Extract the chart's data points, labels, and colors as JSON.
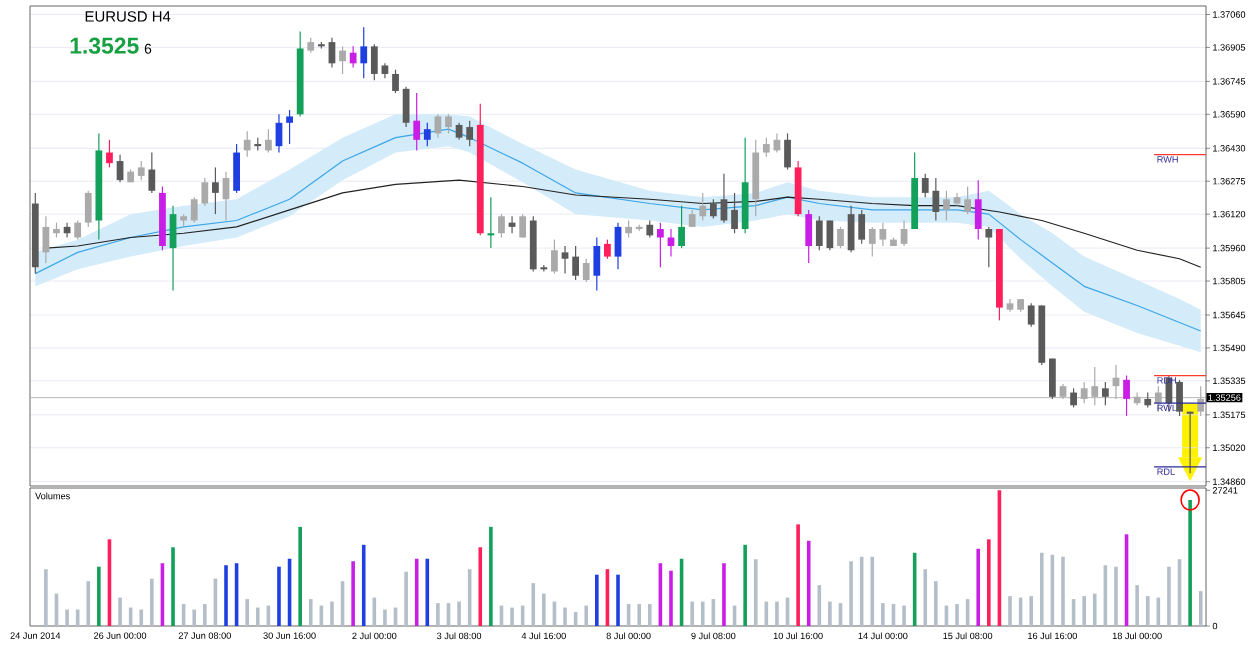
{
  "chart_data": [
    {
      "type": "candlestick",
      "title": "EURUSD H4",
      "subtitle": "1.3525",
      "annotations": [
        "6"
      ],
      "categories": [
        null,
        null,
        null,
        null,
        null,
        null,
        null,
        null,
        null,
        null,
        null,
        null,
        null,
        null,
        null,
        null,
        null,
        null,
        null,
        null,
        null,
        null,
        null,
        null,
        null,
        null,
        null,
        null,
        null,
        null,
        null,
        null,
        null,
        null,
        null,
        null,
        null,
        null,
        null,
        null,
        null,
        null,
        null,
        null,
        null,
        null,
        null,
        null,
        null,
        null,
        null,
        null,
        null,
        null,
        null,
        null,
        null,
        null,
        null,
        null,
        null,
        null,
        null,
        null,
        null,
        null,
        null,
        null,
        null,
        null,
        null,
        null,
        null,
        null,
        null,
        null,
        null,
        null,
        null,
        null,
        null,
        null,
        null,
        null,
        null,
        null,
        null,
        null,
        null,
        null,
        null,
        null,
        null,
        null,
        null,
        null,
        null,
        null,
        null,
        null,
        null,
        null,
        null,
        null,
        null,
        null,
        null,
        null,
        null,
        null,
        null
      ],
      "ohlc": [
        [
          1.3617,
          1.3622,
          1.3584,
          1.3587
        ],
        [
          1.3594,
          1.3611,
          1.3589,
          1.3606
        ],
        [
          1.3603,
          1.3608,
          1.3601,
          1.3605
        ],
        [
          1.3606,
          1.3608,
          1.3601,
          1.3603
        ],
        [
          1.3601,
          1.3609,
          1.36,
          1.3608
        ],
        [
          1.3608,
          1.3623,
          1.3606,
          1.3622
        ],
        [
          1.3609,
          1.365,
          1.36,
          1.3642
        ],
        [
          1.3641,
          1.3647,
          1.3634,
          1.3636
        ],
        [
          1.3637,
          1.364,
          1.3627,
          1.3628
        ],
        [
          1.3627,
          1.3633,
          1.3627,
          1.3632
        ],
        [
          1.363,
          1.3637,
          1.3628,
          1.3634
        ],
        [
          1.3633,
          1.3641,
          1.3622,
          1.3623
        ],
        [
          1.3622,
          1.3625,
          1.3595,
          1.3597
        ],
        [
          1.3596,
          1.3616,
          1.3576,
          1.3612
        ],
        [
          1.3609,
          1.3612,
          1.3606,
          1.3611
        ],
        [
          1.3609,
          1.362,
          1.3608,
          1.3619
        ],
        [
          1.3617,
          1.3629,
          1.3616,
          1.3627
        ],
        [
          1.3627,
          1.3634,
          1.3612,
          1.3622
        ],
        [
          1.3619,
          1.3632,
          1.3609,
          1.3629
        ],
        [
          1.3623,
          1.3645,
          1.3622,
          1.3641
        ],
        [
          1.3642,
          1.3651,
          1.3639,
          1.3647
        ],
        [
          1.3645,
          1.3648,
          1.3642,
          1.3644
        ],
        [
          1.3642,
          1.3652,
          1.3641,
          1.3647
        ],
        [
          1.3644,
          1.3659,
          1.3641,
          1.3655
        ],
        [
          1.3655,
          1.3661,
          1.3645,
          1.3658
        ],
        [
          1.3659,
          1.3698,
          1.3658,
          1.369
        ],
        [
          1.3689,
          1.3695,
          1.3688,
          1.3693
        ],
        [
          1.3692,
          1.3693,
          1.369,
          1.3691
        ],
        [
          1.3693,
          1.3695,
          1.3681,
          1.3683
        ],
        [
          1.3684,
          1.3691,
          1.3678,
          1.3689
        ],
        [
          1.3688,
          1.3691,
          1.3681,
          1.3683
        ],
        [
          1.3683,
          1.37,
          1.3676,
          1.3691
        ],
        [
          1.3691,
          1.3692,
          1.3675,
          1.3678
        ],
        [
          1.3682,
          1.3683,
          1.3676,
          1.3678
        ],
        [
          1.3678,
          1.368,
          1.3669,
          1.367
        ],
        [
          1.3671,
          1.3672,
          1.3653,
          1.3655
        ],
        [
          1.3656,
          1.3669,
          1.3642,
          1.3647
        ],
        [
          1.3647,
          1.3655,
          1.3644,
          1.3652
        ],
        [
          1.365,
          1.3659,
          1.3648,
          1.3658
        ],
        [
          1.3653,
          1.3659,
          1.365,
          1.3658
        ],
        [
          1.3654,
          1.3655,
          1.3647,
          1.3648
        ],
        [
          1.3653,
          1.3656,
          1.3644,
          1.3647
        ],
        [
          1.3654,
          1.3664,
          1.3602,
          1.3603
        ],
        [
          1.3602,
          1.362,
          1.3596,
          1.3603
        ],
        [
          1.3603,
          1.3612,
          1.3601,
          1.3611
        ],
        [
          1.3608,
          1.3611,
          1.3603,
          1.3606
        ],
        [
          1.3601,
          1.3612,
          1.3601,
          1.3611
        ],
        [
          1.3609,
          1.3611,
          1.3585,
          1.3586
        ],
        [
          1.3587,
          1.3588,
          1.3585,
          1.3586
        ],
        [
          1.3585,
          1.36,
          1.3584,
          1.3595
        ],
        [
          1.3594,
          1.3597,
          1.3584,
          1.3591
        ],
        [
          1.3592,
          1.3597,
          1.3581,
          1.3583
        ],
        [
          1.3581,
          1.3591,
          1.358,
          1.3589
        ],
        [
          1.3583,
          1.3601,
          1.3576,
          1.3597
        ],
        [
          1.3598,
          1.36,
          1.3591,
          1.3592
        ],
        [
          1.3592,
          1.3608,
          1.3586,
          1.3606
        ],
        [
          1.3603,
          1.3609,
          1.3601,
          1.3606
        ],
        [
          1.3605,
          1.3607,
          1.3604,
          1.3606
        ],
        [
          1.3607,
          1.3609,
          1.3601,
          1.3602
        ],
        [
          1.3605,
          1.3608,
          1.3587,
          1.3601
        ],
        [
          1.3601,
          1.3605,
          1.3592,
          1.3597
        ],
        [
          1.3597,
          1.3616,
          1.3596,
          1.3606
        ],
        [
          1.3606,
          1.3614,
          1.3606,
          1.3612
        ],
        [
          1.3611,
          1.3622,
          1.3609,
          1.3616
        ],
        [
          1.3617,
          1.3619,
          1.361,
          1.3611
        ],
        [
          1.3619,
          1.3631,
          1.3608,
          1.3609
        ],
        [
          1.3614,
          1.3622,
          1.3603,
          1.3605
        ],
        [
          1.3605,
          1.3648,
          1.3603,
          1.3627
        ],
        [
          1.3619,
          1.3647,
          1.3611,
          1.3641
        ],
        [
          1.3641,
          1.3648,
          1.3639,
          1.3645
        ],
        [
          1.3642,
          1.365,
          1.3641,
          1.3647
        ],
        [
          1.3647,
          1.365,
          1.3633,
          1.3634
        ],
        [
          1.3634,
          1.3637,
          1.3611,
          1.3612
        ],
        [
          1.3612,
          1.3614,
          1.3589,
          1.3597
        ],
        [
          1.3609,
          1.3611,
          1.3595,
          1.3597
        ],
        [
          1.3609,
          1.3609,
          1.3595,
          1.3596
        ],
        [
          1.3597,
          1.3606,
          1.3596,
          1.3605
        ],
        [
          1.3612,
          1.3616,
          1.3594,
          1.3595
        ],
        [
          1.3612,
          1.3614,
          1.3598,
          1.36
        ],
        [
          1.3598,
          1.3606,
          1.3592,
          1.3605
        ],
        [
          1.36,
          1.3608,
          1.3597,
          1.3605
        ],
        [
          1.3597,
          1.3601,
          1.3597,
          1.36
        ],
        [
          1.3598,
          1.3609,
          1.3597,
          1.3605
        ],
        [
          1.3605,
          1.3641,
          1.3605,
          1.3629
        ],
        [
          1.3629,
          1.3631,
          1.362,
          1.3622
        ],
        [
          1.3623,
          1.3629,
          1.3609,
          1.3613
        ],
        [
          1.3614,
          1.3623,
          1.3609,
          1.3619
        ],
        [
          1.3617,
          1.3622,
          1.3616,
          1.362
        ],
        [
          1.3613,
          1.3625,
          1.3612,
          1.3619
        ],
        [
          1.3619,
          1.3628,
          1.36,
          1.3605
        ],
        [
          1.3605,
          1.3606,
          1.3587,
          1.3601
        ],
        [
          1.3605,
          1.3605,
          1.3562,
          1.3568
        ],
        [
          1.3567,
          1.3572,
          1.3566,
          1.357
        ],
        [
          1.3567,
          1.3572,
          1.3566,
          1.3572
        ],
        [
          1.3569,
          1.357,
          1.3559,
          1.356
        ],
        [
          1.3569,
          1.3569,
          1.3541,
          1.3542
        ],
        [
          1.3544,
          1.3544,
          1.3525,
          1.3526
        ],
        [
          1.3526,
          1.3532,
          1.3525,
          1.3531
        ],
        [
          1.3528,
          1.353,
          1.3521,
          1.3522
        ],
        [
          1.3525,
          1.3533,
          1.3523,
          1.353
        ],
        [
          1.3526,
          1.354,
          1.3522,
          1.3531
        ],
        [
          1.353,
          1.3533,
          1.3522,
          1.3526
        ],
        [
          1.3531,
          1.3541,
          1.3525,
          1.3535
        ],
        [
          1.3534,
          1.3536,
          1.3517,
          1.3525
        ],
        [
          1.3523,
          1.3528,
          1.3522,
          1.3526
        ],
        [
          1.3525,
          1.3528,
          1.3521,
          1.3522
        ],
        [
          1.3523,
          1.3531,
          1.3519,
          1.3528
        ],
        [
          1.3535,
          1.3536,
          1.3519,
          1.3523
        ],
        [
          1.3533,
          1.3534,
          1.3517,
          1.3519
        ],
        [
          1.3519,
          1.3519,
          1.349,
          1.3518
        ],
        [
          1.3519,
          1.3531,
          1.3517,
          1.3525
        ]
      ],
      "colors": [
        "#5a5a5a",
        "#aaaaaa",
        "#aaaaaa",
        "#5a5a5a",
        "#aaaaaa",
        "#aaaaaa",
        "#12a05a",
        "#ff1f5a",
        "#5a5a5a",
        "#aaaaaa",
        "#aaaaaa",
        "#5a5a5a",
        "#c81ee6",
        "#12a05a",
        "#aaaaaa",
        "#aaaaaa",
        "#aaaaaa",
        "#5a5a5a",
        "#aaaaaa",
        "#1f3fe0",
        "#aaaaaa",
        "#5a5a5a",
        "#aaaaaa",
        "#1f3fe0",
        "#1f3fe0",
        "#12a05a",
        "#aaaaaa",
        "#5a5a5a",
        "#5a5a5a",
        "#aaaaaa",
        "#c81ee6",
        "#1f3fe0",
        "#5a5a5a",
        "#5a5a5a",
        "#5a5a5a",
        "#5a5a5a",
        "#c81ee6",
        "#1f3fe0",
        "#aaaaaa",
        "#aaaaaa",
        "#5a5a5a",
        "#5a5a5a",
        "#ff1f5a",
        "#12a05a",
        "#aaaaaa",
        "#5a5a5a",
        "#aaaaaa",
        "#5a5a5a",
        "#5a5a5a",
        "#aaaaaa",
        "#5a5a5a",
        "#5a5a5a",
        "#aaaaaa",
        "#1f3fe0",
        "#ff1f5a",
        "#1f3fe0",
        "#aaaaaa",
        "#aaaaaa",
        "#5a5a5a",
        "#c81ee6",
        "#c81ee6",
        "#12a05a",
        "#aaaaaa",
        "#aaaaaa",
        "#5a5a5a",
        "#5a5a5a",
        "#5a5a5a",
        "#12a05a",
        "#aaaaaa",
        "#aaaaaa",
        "#aaaaaa",
        "#5a5a5a",
        "#ff1f5a",
        "#c81ee6",
        "#5a5a5a",
        "#5a5a5a",
        "#aaaaaa",
        "#5a5a5a",
        "#5a5a5a",
        "#aaaaaa",
        "#aaaaaa",
        "#aaaaaa",
        "#aaaaaa",
        "#12a05a",
        "#5a5a5a",
        "#5a5a5a",
        "#aaaaaa",
        "#aaaaaa",
        "#aaaaaa",
        "#c81ee6",
        "#5a5a5a",
        "#ff1f5a",
        "#aaaaaa",
        "#aaaaaa",
        "#5a5a5a",
        "#5a5a5a",
        "#5a5a5a",
        "#aaaaaa",
        "#5a5a5a",
        "#aaaaaa",
        "#aaaaaa",
        "#5a5a5a",
        "#aaaaaa",
        "#c81ee6",
        "#aaaaaa",
        "#5a5a5a",
        "#aaaaaa",
        "#5a5a5a",
        "#5a5a5a",
        "#5a5a5a",
        "#aaaaaa"
      ],
      "series": [
        {
          "type": "line",
          "color": "#3aa6e8",
          "values": [
            1.3584,
            null,
            null,
            null,
            1.3594,
            null,
            null,
            null,
            null,
            1.3601,
            null,
            null,
            null,
            null,
            1.3606,
            null,
            null,
            null,
            null,
            1.3609,
            null,
            null,
            null,
            null,
            1.3619,
            null,
            null,
            null,
            null,
            1.3637,
            null,
            null,
            null,
            null,
            1.3648,
            null,
            null,
            null,
            null,
            1.3652,
            null,
            1.3648,
            null,
            null,
            null,
            null,
            1.3636,
            null,
            null,
            null,
            null,
            1.3622,
            null,
            null,
            null,
            null,
            null,
            null,
            1.3617,
            null,
            null,
            null,
            null,
            1.3614,
            null,
            null,
            null,
            null,
            1.3616,
            null,
            null,
            1.362,
            null,
            null,
            1.3617,
            null,
            null,
            null,
            null,
            1.3614,
            null,
            null,
            null,
            1.3614,
            null,
            null,
            null,
            1.3614,
            null,
            null,
            1.3612,
            null,
            null,
            1.36,
            null,
            null,
            1.3589,
            null,
            null,
            1.3578,
            null,
            null,
            null,
            null,
            1.3569,
            null,
            null,
            null,
            1.3561,
            null,
            1.3557
          ],
          "lower": [
            1.3578,
            null,
            null,
            null,
            1.3586,
            null,
            null,
            null,
            null,
            1.3592,
            null,
            null,
            null,
            null,
            1.3597,
            null,
            null,
            null,
            null,
            1.3601,
            null,
            null,
            null,
            null,
            1.3611,
            null,
            null,
            null,
            null,
            1.3628,
            null,
            null,
            null,
            null,
            1.3641,
            null,
            null,
            null,
            null,
            1.3644,
            null,
            1.3641,
            null,
            null,
            null,
            null,
            1.3627,
            null,
            null,
            null,
            null,
            1.3612,
            null,
            null,
            null,
            null,
            null,
            null,
            1.3609,
            null,
            null,
            null,
            null,
            1.3606,
            null,
            null,
            null,
            null,
            1.3609,
            null,
            null,
            1.3612,
            null,
            null,
            1.3609,
            null,
            null,
            null,
            null,
            1.3608,
            null,
            null,
            null,
            1.3608,
            null,
            null,
            null,
            1.3608,
            null,
            null,
            1.3606,
            null,
            null,
            1.3591,
            null,
            null,
            1.3578,
            null,
            null,
            1.3566,
            null,
            null,
            null,
            null,
            1.3556,
            null,
            null,
            null,
            1.355,
            null,
            1.3547
          ],
          "upper": [
            1.3594,
            null,
            null,
            null,
            1.36,
            null,
            null,
            null,
            null,
            1.3612,
            null,
            null,
            null,
            null,
            1.3616,
            null,
            null,
            null,
            null,
            1.3619,
            null,
            null,
            null,
            null,
            1.3633,
            null,
            null,
            null,
            null,
            1.3648,
            null,
            null,
            null,
            null,
            1.3659,
            null,
            null,
            null,
            null,
            1.3659,
            null,
            1.3658,
            null,
            null,
            null,
            null,
            1.3645,
            null,
            null,
            null,
            null,
            1.3633,
            null,
            null,
            null,
            null,
            null,
            null,
            1.3623,
            null,
            null,
            null,
            null,
            1.362,
            null,
            null,
            null,
            null,
            1.3622,
            null,
            null,
            1.3627,
            null,
            null,
            1.3623,
            null,
            null,
            null,
            null,
            1.362,
            null,
            null,
            null,
            1.362,
            null,
            null,
            null,
            1.362,
            null,
            null,
            1.3623,
            null,
            null,
            1.3612,
            null,
            null,
            1.3603,
            null,
            null,
            1.3592,
            null,
            null,
            null,
            null,
            1.3581,
            null,
            null,
            null,
            1.3572,
            null,
            1.3567
          ]
        },
        {
          "type": "line",
          "color": "#222222",
          "values": [
            null,
            1.3596,
            null,
            null,
            1.3597,
            null,
            null,
            null,
            null,
            1.3601,
            null,
            null,
            null,
            null,
            1.3603,
            null,
            null,
            null,
            null,
            1.3606,
            null,
            null,
            null,
            null,
            1.3614,
            null,
            null,
            null,
            null,
            1.3622,
            null,
            null,
            null,
            null,
            1.3626,
            null,
            null,
            null,
            null,
            null,
            1.3628,
            null,
            null,
            null,
            null,
            null,
            1.3625,
            null,
            null,
            null,
            null,
            1.3621,
            null,
            null,
            null,
            null,
            null,
            null,
            1.3619,
            null,
            null,
            null,
            null,
            1.3617,
            null,
            null,
            null,
            null,
            1.3618,
            null,
            null,
            1.362,
            null,
            null,
            1.3619,
            null,
            null,
            null,
            null,
            1.3617,
            null,
            null,
            null,
            1.3616,
            null,
            null,
            null,
            1.3616,
            null,
            null,
            null,
            1.3613,
            null,
            null,
            null,
            1.3609,
            null,
            null,
            null,
            1.3603,
            null,
            null,
            null,
            null,
            1.3595,
            null,
            null,
            null,
            1.3591,
            null,
            1.3587
          ]
        }
      ],
      "ref_lines": [
        {
          "axis": "y",
          "value": 1.364,
          "label": "RWH",
          "color": "#ff3b2f"
        },
        {
          "axis": "y",
          "value": 1.3536,
          "label": "RDH",
          "color": "#ff3b2f"
        },
        {
          "axis": "y",
          "value": 1.3523,
          "label": "RWL",
          "color": "#2a2a9a"
        },
        {
          "axis": "y",
          "value": 1.3493,
          "label": "RDL",
          "color": "#2a2a9a"
        },
        {
          "axis": "y",
          "value": 1.35256,
          "label": "1.35256"
        }
      ],
      "ylim": [
        1.3484,
        1.371
      ],
      "yticks": [
        {
          "value": 1.3486,
          "label": "1.34860"
        },
        {
          "value": 1.3502,
          "label": "1.35020"
        },
        {
          "value": 1.35175,
          "label": "1.35175"
        },
        {
          "value": 1.35335,
          "label": "1.35335"
        },
        {
          "value": 1.3549,
          "label": "1.35490"
        },
        {
          "value": 1.35645,
          "label": "1.35645"
        },
        {
          "value": 1.35805,
          "label": "1.35805"
        },
        {
          "value": 1.3596,
          "label": "1.35960"
        },
        {
          "value": 1.3612,
          "label": "1.36120"
        },
        {
          "value": 1.36275,
          "label": "1.36275"
        },
        {
          "value": 1.3643,
          "label": "1.36430"
        },
        {
          "value": 1.3659,
          "label": "1.36590"
        },
        {
          "value": 1.36745,
          "label": "1.36745"
        },
        {
          "value": 1.36905,
          "label": "1.36905"
        },
        {
          "value": 1.3706,
          "label": "1.37060"
        }
      ],
      "grid": "y",
      "tick_labels": "y"
    },
    {
      "type": "bar",
      "title": "Volumes",
      "categories": [
        "24 Jun 2014",
        null,
        null,
        null,
        null,
        null,
        null,
        null,
        "26 Jun 00:00",
        null,
        null,
        null,
        null,
        null,
        null,
        null,
        "27 Jun 08:00",
        null,
        null,
        null,
        null,
        null,
        null,
        null,
        "30 Jun 16:00",
        null,
        null,
        null,
        null,
        null,
        null,
        null,
        "2 Jul 00:00",
        null,
        null,
        null,
        null,
        null,
        null,
        null,
        "3 Jul 08:00",
        null,
        null,
        null,
        null,
        null,
        null,
        null,
        "4 Jul 16:00",
        null,
        null,
        null,
        null,
        null,
        null,
        null,
        "8 Jul 00:00",
        null,
        null,
        null,
        null,
        null,
        null,
        null,
        "9 Jul 08:00",
        null,
        null,
        null,
        null,
        null,
        null,
        null,
        "10 Jul 16:00",
        null,
        null,
        null,
        null,
        null,
        null,
        null,
        "14 Jul 00:00",
        null,
        null,
        null,
        null,
        null,
        null,
        null,
        "15 Jul 08:00",
        null,
        null,
        null,
        null,
        null,
        null,
        null,
        "16 Jul 16:00",
        null,
        null,
        null,
        null,
        null,
        null,
        null,
        "18 Jul 00:00",
        null,
        null,
        null,
        null,
        null,
        null
      ],
      "values": [
        null,
        11400,
        6500,
        3300,
        3300,
        9000,
        11900,
        17400,
        5700,
        3700,
        3300,
        9500,
        12600,
        15800,
        4400,
        3300,
        4400,
        9500,
        12200,
        12600,
        5400,
        3700,
        4100,
        11900,
        13500,
        19900,
        5400,
        4100,
        4900,
        9000,
        13000,
        16300,
        5700,
        3300,
        3700,
        10900,
        13500,
        13500,
        4600,
        4600,
        4900,
        11400,
        15800,
        19900,
        4100,
        3700,
        4100,
        8600,
        6500,
        4900,
        3700,
        2800,
        4100,
        10300,
        11400,
        10300,
        4400,
        4400,
        4400,
        12600,
        11100,
        13500,
        4900,
        4900,
        5400,
        12600,
        4100,
        16300,
        13400,
        4900,
        4900,
        5700,
        20400,
        17100,
        8200,
        4900,
        4600,
        13000,
        13900,
        13900,
        4600,
        4400,
        4100,
        14700,
        11400,
        9000,
        4100,
        4400,
        5400,
        15500,
        17400,
        27241,
        6000,
        5700,
        6000,
        14700,
        14300,
        13900,
        5400,
        6000,
        6500,
        12200,
        11900,
        18400,
        8200,
        6000,
        5700,
        11900,
        13400,
        25300,
        7000
      ],
      "colors": [
        "#b4bec8",
        "#b4bec8",
        "#b4bec8",
        "#b4bec8",
        "#b4bec8",
        "#b4bec8",
        "#12a05a",
        "#ff1f5a",
        "#b4bec8",
        "#b4bec8",
        "#b4bec8",
        "#b4bec8",
        "#c81ee6",
        "#12a05a",
        "#b4bec8",
        "#b4bec8",
        "#b4bec8",
        "#b4bec8",
        "#1f3fe0",
        "#1f3fe0",
        "#b4bec8",
        "#b4bec8",
        "#b4bec8",
        "#1f3fe0",
        "#1f3fe0",
        "#12a05a",
        "#b4bec8",
        "#b4bec8",
        "#b4bec8",
        "#b4bec8",
        "#c81ee6",
        "#1f3fe0",
        "#b4bec8",
        "#b4bec8",
        "#b4bec8",
        "#b4bec8",
        "#c81ee6",
        "#1f3fe0",
        "#b4bec8",
        "#b4bec8",
        "#b4bec8",
        "#b4bec8",
        "#ff1f5a",
        "#12a05a",
        "#b4bec8",
        "#b4bec8",
        "#b4bec8",
        "#b4bec8",
        "#b4bec8",
        "#b4bec8",
        "#b4bec8",
        "#b4bec8",
        "#b4bec8",
        "#1f3fe0",
        "#ff1f5a",
        "#1f3fe0",
        "#b4bec8",
        "#b4bec8",
        "#b4bec8",
        "#c81ee6",
        "#c81ee6",
        "#12a05a",
        "#b4bec8",
        "#b4bec8",
        "#b4bec8",
        "#c81ee6",
        "#b4bec8",
        "#12a05a",
        "#b4bec8",
        "#b4bec8",
        "#b4bec8",
        "#b4bec8",
        "#ff1f5a",
        "#c81ee6",
        "#b4bec8",
        "#b4bec8",
        "#b4bec8",
        "#b4bec8",
        "#b4bec8",
        "#b4bec8",
        "#b4bec8",
        "#b4bec8",
        "#b4bec8",
        "#12a05a",
        "#b4bec8",
        "#b4bec8",
        "#b4bec8",
        "#b4bec8",
        "#b4bec8",
        "#c81ee6",
        "#ff1f5a",
        "#ff1f5a",
        "#b4bec8",
        "#b4bec8",
        "#b4bec8",
        "#b4bec8",
        "#b4bec8",
        "#b4bec8",
        "#b4bec8",
        "#b4bec8",
        "#b4bec8",
        "#b4bec8",
        "#b4bec8",
        "#c81ee6",
        "#b4bec8",
        "#b4bec8",
        "#b4bec8",
        "#b4bec8",
        "#b4bec8",
        "#12a05a",
        "#b4bec8"
      ],
      "ylim": [
        0,
        27700
      ],
      "yticks": [
        0,
        27241
      ]
    }
  ]
}
